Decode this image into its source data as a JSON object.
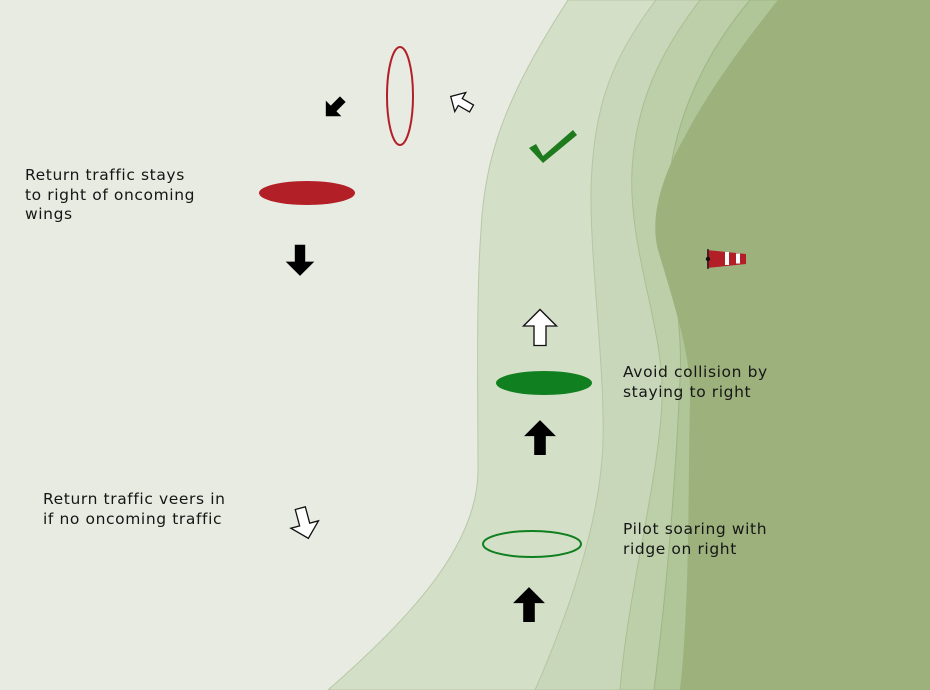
{
  "labels": {
    "return_stays_right": "Return traffic stays\nto right of oncoming\nwings",
    "avoid_collision": "Avoid collision by\nstaying to right",
    "return_veers": "Return traffic veers in\nif no oncoming traffic",
    "pilot_soaring": "Pilot soaring with\nridge on right"
  },
  "colors": {
    "background": "#e7ebe1",
    "soaring_band": "#d4dfc8",
    "ridge_band_1": "#c8d7b9",
    "ridge_band_2": "#bccfa9",
    "ridge_band_3": "#b0c598",
    "ridge": "#9db17c",
    "return_wing": "#b31f27",
    "soaring_wing": "#0f7f1f",
    "arrow": "#000000",
    "check": "#1d7a1d",
    "windsock": "#b31f27"
  },
  "icons": {
    "check": "check-icon",
    "windsock": "windsock-icon",
    "arrow_solid": "arrow-solid-icon",
    "arrow_outline": "arrow-outline-icon"
  }
}
